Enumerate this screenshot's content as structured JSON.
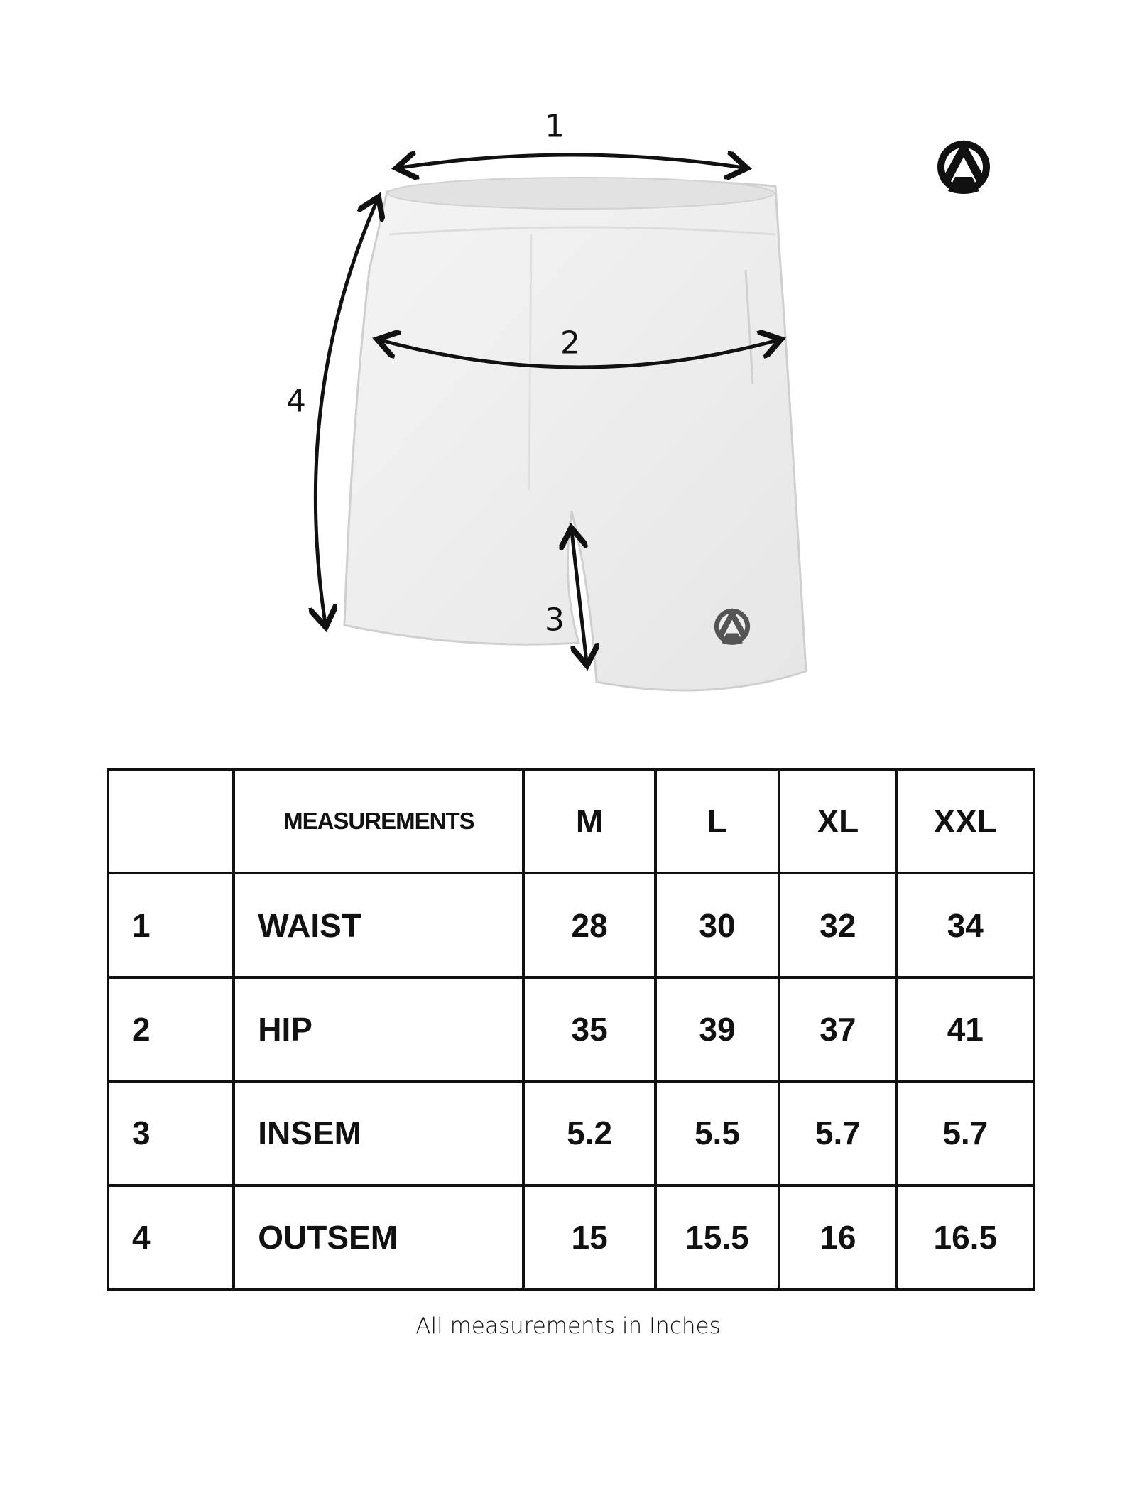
{
  "diagram": {
    "labels": [
      "1",
      "2",
      "3",
      "4"
    ],
    "brand_icon": "circle-a-logo-icon"
  },
  "table": {
    "header": [
      "",
      "MEASUREMENTS",
      "M",
      "L",
      "XL",
      "XXL"
    ],
    "rows": [
      [
        "1",
        "WAIST",
        "28",
        "30",
        "32",
        "34"
      ],
      [
        "2",
        "HIP",
        "35",
        "39",
        "37",
        "41"
      ],
      [
        "3",
        "INSEM",
        "5.2",
        "5.5",
        "5.7",
        "5.7"
      ],
      [
        "4",
        "OUTSEM",
        "15",
        "15.5",
        "16",
        "16.5"
      ]
    ]
  },
  "footnote": "All measurements in Inches"
}
